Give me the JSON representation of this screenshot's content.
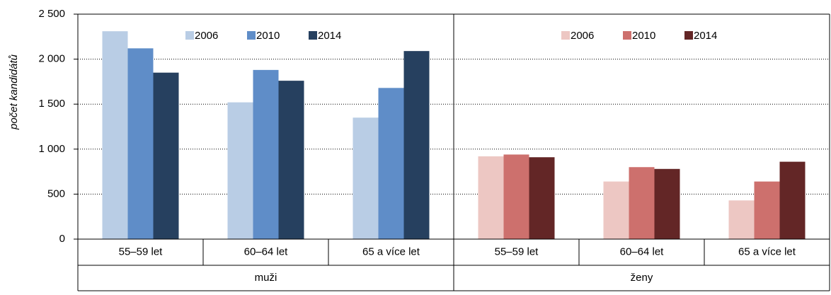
{
  "chart_data": {
    "type": "bar",
    "ylabel": "počet kandidátů",
    "ylim": [
      0,
      2500
    ],
    "yticks": [
      0,
      500,
      {
        "value": 1000,
        "label": "1 000"
      },
      {
        "value": 1500,
        "label": "1 500"
      },
      {
        "value": 2000,
        "label": "2 000"
      },
      {
        "value": 2500,
        "label": "2 500"
      }
    ],
    "grid": true,
    "panels": [
      {
        "label": "muži",
        "categories": [
          "55–59 let",
          "60–64 let",
          "65 a více let"
        ],
        "series": [
          {
            "name": "2006",
            "color": "#b9cde5",
            "values": [
              2310,
              1520,
              1350
            ]
          },
          {
            "name": "2010",
            "color": "#5f8dc8",
            "values": [
              2120,
              1880,
              1680
            ]
          },
          {
            "name": "2014",
            "color": "#26405f",
            "values": [
              1850,
              1760,
              2090
            ]
          }
        ]
      },
      {
        "label": "ženy",
        "categories": [
          "55–59 let",
          "60–64 let",
          "65 a více let"
        ],
        "series": [
          {
            "name": "2006",
            "color": "#edc7c3",
            "values": [
              920,
              640,
              430
            ]
          },
          {
            "name": "2010",
            "color": "#cd706d",
            "values": [
              940,
              800,
              640
            ]
          },
          {
            "name": "2014",
            "color": "#632626",
            "values": [
              910,
              780,
              860
            ]
          }
        ]
      }
    ]
  }
}
